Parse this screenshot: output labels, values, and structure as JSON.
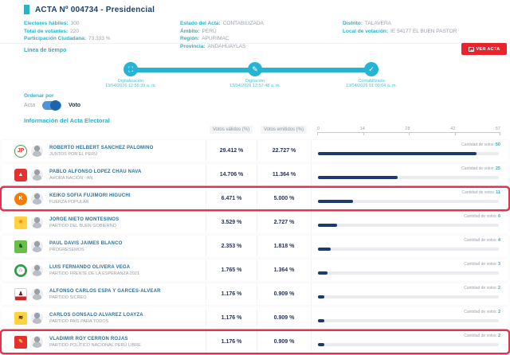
{
  "header": {
    "title": "ACTA Nº 004734 - Presidencial",
    "ver_acta_label": "VER ACTA",
    "info_cols": [
      [
        {
          "label": "Electores hábiles:",
          "value": "300"
        },
        {
          "label": "Total de votantes:",
          "value": "220"
        },
        {
          "label": "Participación Ciudadana:",
          "value": "73.333 %"
        }
      ],
      [
        {
          "label": "Estado del Acta:",
          "value": "CONTABILIZADA"
        },
        {
          "label": "Ámbito:",
          "value": "PERÚ"
        },
        {
          "label": "Región:",
          "value": "APURIMAC"
        },
        {
          "label": "Provincia:",
          "value": "ANDAHUAYLAS"
        }
      ],
      [
        {
          "label": "Distrito:",
          "value": "TALAVERA"
        },
        {
          "label": "Local de votación:",
          "value": "IE 54177 EL BUEN PASTOR"
        }
      ]
    ]
  },
  "timeline": {
    "heading": "Línea de tiempo",
    "steps": [
      {
        "name": "Digitalización",
        "date": "13/04/2026 12:56:39 a. m.",
        "icon": "⛶"
      },
      {
        "name": "Digitación",
        "date": "13/04/2026 12:57:48 a. m.",
        "icon": "✎"
      },
      {
        "name": "Contabilizada",
        "date": "13/04/2026 01:00:04 a. m.",
        "icon": "✓"
      }
    ]
  },
  "sort": {
    "heading": "Ordenar por",
    "option_left": "Acta",
    "option_right": "Voto"
  },
  "table": {
    "heading": "Información del Acta Electoral",
    "col_valid": "Votos válidos (%)",
    "col_emitted": "Votos emitidos (%)",
    "axis_ticks": [
      "0",
      "14",
      "28",
      "42",
      "57"
    ],
    "axis_max": 57,
    "votes_label": "Cantidad de votos:",
    "rows": [
      {
        "candidate": "ROBERTO HELBERT SANCHEZ PALOMINO",
        "party": "JUNTOS POR EL PERÚ",
        "valid": "29.412 %",
        "emitted": "22.727 %",
        "votes": "50",
        "votes_num": 50,
        "highlighted": false,
        "logo": {
          "shape": "ring",
          "bg": "#ffffff",
          "fg": "#e53935",
          "glyph": "JP",
          "ring": "#43a047"
        }
      },
      {
        "candidate": "PABLO ALFONSO LOPEZ CHAU NAVA",
        "party": "AHORA NACIÓN - AN",
        "valid": "14.706 %",
        "emitted": "11.364 %",
        "votes": "25",
        "votes_num": 25,
        "highlighted": false,
        "logo": {
          "shape": "rounded",
          "bg": "#e53030",
          "fg": "#ffffff",
          "glyph": "▲"
        }
      },
      {
        "candidate": "KEIKO SOFIA FUJIMORI HIGUCHI",
        "party": "FUERZA POPULAR",
        "valid": "6.471 %",
        "emitted": "5.000 %",
        "votes": "11",
        "votes_num": 11,
        "highlighted": true,
        "logo": {
          "shape": "circle",
          "bg": "#f57c00",
          "fg": "#ffffff",
          "glyph": "K"
        }
      },
      {
        "candidate": "JORGE NIETO MONTESINOS",
        "party": "PARTIDO DEL BUEN GOBIERNO",
        "valid": "3.529 %",
        "emitted": "2.727 %",
        "votes": "6",
        "votes_num": 6,
        "highlighted": false,
        "logo": {
          "shape": "square",
          "bg": "#ffd23f",
          "fg": "#f3701e",
          "glyph": "☀"
        }
      },
      {
        "candidate": "PAUL DAVIS JAIMES BLANCO",
        "party": "PROGRESEMOS",
        "valid": "2.353 %",
        "emitted": "1.818 %",
        "votes": "4",
        "votes_num": 4,
        "highlighted": false,
        "logo": {
          "shape": "square",
          "bg": "#6abf4b",
          "fg": "#1b5e20",
          "glyph": "♞"
        }
      },
      {
        "candidate": "LUIS FERNANDO OLIVERA VEGA",
        "party": "PARTIDO FRENTE DE LA ESPERANZA 2021",
        "valid": "1.765 %",
        "emitted": "1.364 %",
        "votes": "3",
        "votes_num": 3,
        "highlighted": false,
        "logo": {
          "shape": "circle",
          "bg": "#2e9e49",
          "fg": "#666666",
          "glyph": "⌂",
          "inner_disc": true
        }
      },
      {
        "candidate": "ALFONSO CARLOS ESPA Y GARCES-ALVEAR",
        "party": "PARTIDO SICREO",
        "valid": "1.176 %",
        "emitted": "0.909 %",
        "votes": "2",
        "votes_num": 2,
        "highlighted": false,
        "logo": {
          "shape": "square",
          "bg": "#ffffff",
          "fg": "#7a1f1f",
          "glyph": "♟",
          "border": "#d0d3d8",
          "strip": "#c62828"
        }
      },
      {
        "candidate": "CARLOS GONSALO ALVAREZ LOAYZA",
        "party": "PARTIDO PAÍS PARA TODOS",
        "valid": "1.176 %",
        "emitted": "0.909 %",
        "votes": "2",
        "votes_num": 2,
        "highlighted": false,
        "logo": {
          "shape": "square",
          "bg": "#ffd23f",
          "fg": "#1a1a1a",
          "glyph": "≋"
        }
      },
      {
        "candidate": "VLADIMIR ROY CERRON ROJAS",
        "party": "PARTIDO POLÍTICO NACIONAL PERÚ LIBRE",
        "valid": "1.176 %",
        "emitted": "0.909 %",
        "votes": "2",
        "votes_num": 2,
        "highlighted": true,
        "logo": {
          "shape": "square",
          "bg": "#e53030",
          "fg": "#ffd23f",
          "glyph": "✎"
        }
      }
    ]
  },
  "chart_data": {
    "type": "bar",
    "categories": [
      "ROBERTO HELBERT SANCHEZ PALOMINO",
      "PABLO ALFONSO LOPEZ CHAU NAVA",
      "KEIKO SOFIA FUJIMORI HIGUCHI",
      "JORGE NIETO MONTESINOS",
      "PAUL DAVIS JAIMES BLANCO",
      "LUIS FERNANDO OLIVERA VEGA",
      "ALFONSO CARLOS ESPA Y GARCES-ALVEAR",
      "CARLOS GONSALO ALVAREZ LOAYZA",
      "VLADIMIR ROY CERRON ROJAS"
    ],
    "values": [
      50,
      25,
      11,
      6,
      4,
      3,
      2,
      2,
      2
    ],
    "title": "Cantidad de votos",
    "xlabel": "",
    "ylabel": "",
    "xlim": [
      0,
      57
    ]
  }
}
